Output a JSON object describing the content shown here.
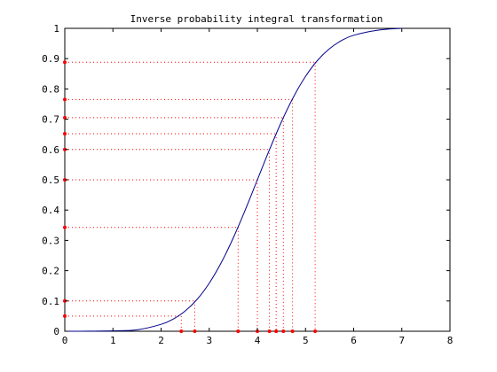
{
  "chart_data": {
    "type": "line",
    "title": "Inverse probability integral transformation",
    "xlabel": "",
    "ylabel": "",
    "xlim": [
      0,
      8
    ],
    "ylim": [
      0,
      1
    ],
    "x_ticks": [
      "0",
      "1",
      "2",
      "3",
      "4",
      "5",
      "6",
      "7",
      "8"
    ],
    "y_ticks": [
      "0",
      "0.1",
      "0.2",
      "0.3",
      "0.4",
      "0.5",
      "0.6",
      "0.7",
      "0.8",
      "0.9",
      "1"
    ],
    "grid": false,
    "legend": "none",
    "series": [
      {
        "kind": "cdf-curve",
        "color": "#00008b",
        "x": [
          0,
          0.5,
          1.0,
          1.5,
          2.0,
          2.25,
          2.5,
          2.75,
          3.0,
          3.25,
          3.5,
          3.75,
          4.0,
          4.25,
          4.5,
          4.75,
          5.0,
          5.25,
          5.5,
          5.75,
          6.0,
          6.5,
          7.0
        ],
        "y": [
          0.0,
          0.0003,
          0.0013,
          0.0047,
          0.0228,
          0.0401,
          0.0668,
          0.1056,
          0.1587,
          0.2266,
          0.3085,
          0.4013,
          0.5,
          0.5987,
          0.6915,
          0.7734,
          0.8413,
          0.8944,
          0.9332,
          0.9599,
          0.9772,
          0.9938,
          1.0
        ]
      }
    ],
    "samples": {
      "color": "#ff0000",
      "u": [
        0.05,
        0.1,
        0.343,
        0.5,
        0.6,
        0.652,
        0.705,
        0.765,
        0.888
      ],
      "x": [
        2.42,
        2.7,
        3.6,
        4.0,
        4.25,
        4.39,
        4.54,
        4.73,
        5.2
      ]
    }
  }
}
